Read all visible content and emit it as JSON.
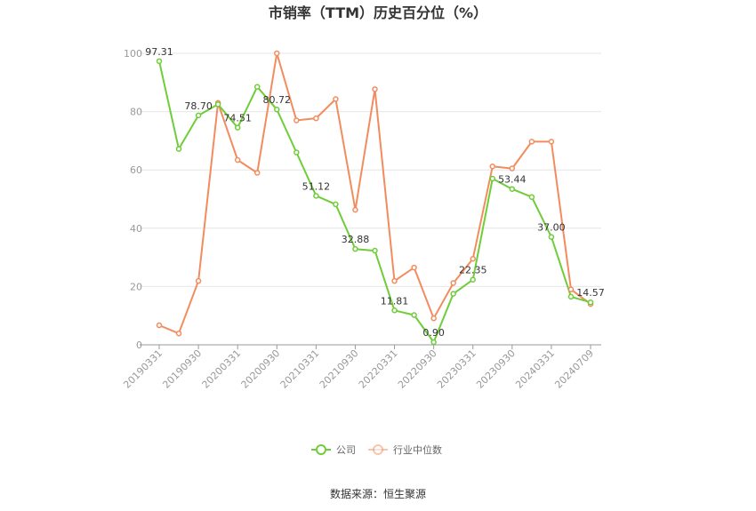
{
  "chart_data": {
    "type": "line",
    "title": "市销率（TTM）历史百分位（%）",
    "ylim": [
      0,
      100
    ],
    "yticks": [
      0,
      20,
      40,
      60,
      80,
      100
    ],
    "x_tick_labels": [
      "20190331",
      "20190930",
      "20200331",
      "20200930",
      "20210331",
      "20210930",
      "20220331",
      "20220930",
      "20230331",
      "20230930",
      "20240331",
      "20240709"
    ],
    "x_tick_positions": [
      0,
      2,
      4,
      6,
      8,
      10,
      12,
      14,
      16,
      18,
      20,
      22
    ],
    "series": [
      {
        "name": "公司",
        "color": "#6fcd39",
        "values": [
          97.31,
          67.2,
          78.7,
          82.5,
          74.51,
          88.5,
          80.72,
          66.0,
          51.12,
          48.2,
          32.88,
          32.3,
          11.81,
          10.2,
          0.9,
          17.5,
          22.35,
          57.0,
          53.44,
          50.7,
          37.0,
          16.5,
          14.57
        ],
        "labels": {
          "0": "97.31",
          "2": "78.70",
          "4": "74.51",
          "6": "80.72",
          "8": "51.12",
          "10": "32.88",
          "12": "11.81",
          "14": "0.90",
          "16": "22.35",
          "18": "53.44",
          "20": "37.00",
          "22": "14.57"
        }
      },
      {
        "name": "行业中位数",
        "color": "#f28c5f",
        "values": [
          6.7,
          3.9,
          21.9,
          83.0,
          63.4,
          59.0,
          100.0,
          77.0,
          77.7,
          84.3,
          46.3,
          87.7,
          21.9,
          26.5,
          9.1,
          21.2,
          29.5,
          61.2,
          60.5,
          69.7,
          69.7,
          19.0,
          14.0
        ]
      }
    ],
    "legend_position": "bottom-center",
    "grid": true
  },
  "source": "数据来源：恒生聚源"
}
